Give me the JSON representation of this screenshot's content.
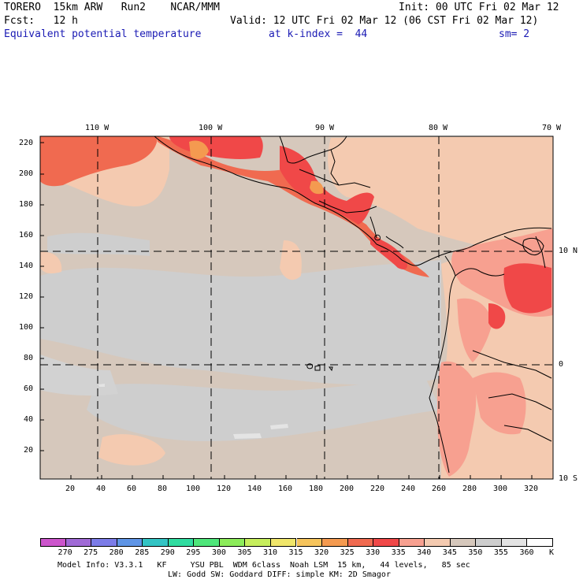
{
  "header": {
    "model": "TORERO  15km ARW   Run2    NCAR/MMM",
    "init": "Init: 00 UTC Fri 02 Mar 12",
    "fcst": "Fcst:   12 h",
    "valid": "Valid: 12 UTC Fri 02 Mar 12 (06 CST Fri 02 Mar 12)",
    "field": "Equivalent potential temperature",
    "kindex": "at k-index =  44",
    "sm": "sm= 2"
  },
  "map": {
    "lon_labels": [
      "110 W",
      "100 W",
      "90 W",
      "80 W",
      "70 W"
    ],
    "lat_labels": [
      "10 N",
      "0",
      "10 S"
    ],
    "y_ticks": [
      "220",
      "200",
      "180",
      "160",
      "140",
      "120",
      "100",
      "80",
      "60",
      "40",
      "20"
    ],
    "x_ticks": [
      "20",
      "40",
      "60",
      "80",
      "100",
      "120",
      "140",
      "160",
      "180",
      "200",
      "220",
      "240",
      "260",
      "280",
      "300",
      "320"
    ]
  },
  "colorbar": {
    "unit": "K",
    "levels": [
      "270",
      "275",
      "280",
      "285",
      "290",
      "295",
      "300",
      "305",
      "310",
      "315",
      "320",
      "325",
      "330",
      "335",
      "340",
      "345",
      "350",
      "355",
      "360"
    ],
    "colors": [
      "#cc55cc",
      "#a06ad6",
      "#7c7ce8",
      "#5f95e6",
      "#33c4c4",
      "#30dca0",
      "#4ee67a",
      "#8cec5a",
      "#c6ee5c",
      "#f0e66a",
      "#f6c45c",
      "#f49a50",
      "#f06a50",
      "#f04848",
      "#f7a090",
      "#f4cab0",
      "#d6c8bc",
      "#cecece",
      "#e4e4e4",
      "#ffffff"
    ]
  },
  "footer": {
    "line1": "Model Info: V3.3.1   KF     YSU PBL  WDM 6class  Noah LSM  15 km,   44 levels,   85 sec",
    "line2": "LW: Godd SW: Goddard DIFF: simple KM: 2D Smagor"
  }
}
